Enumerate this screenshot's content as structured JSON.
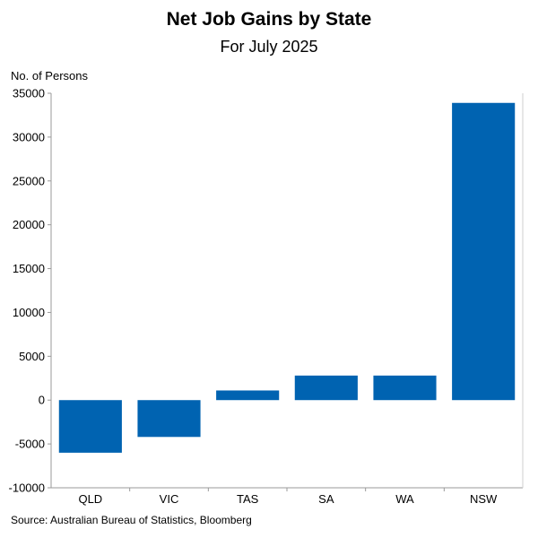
{
  "chart_data": {
    "type": "bar",
    "title": "Net Job Gains by State",
    "subtitle": "For July 2025",
    "ylabel": "No. of Persons",
    "xlabel": "",
    "categories": [
      "QLD",
      "VIC",
      "TAS",
      "SA",
      "WA",
      "NSW"
    ],
    "values": [
      -6000,
      -4200,
      1100,
      2800,
      2800,
      33900
    ],
    "ylim": [
      -10000,
      35000
    ],
    "yticks": [
      35000,
      30000,
      25000,
      20000,
      15000,
      10000,
      5000,
      0,
      -5000,
      -10000
    ],
    "grid": false,
    "legend": "none",
    "bar_color": "#0063B1",
    "source": "Source: Australian Bureau of Statistics, Bloomberg"
  }
}
